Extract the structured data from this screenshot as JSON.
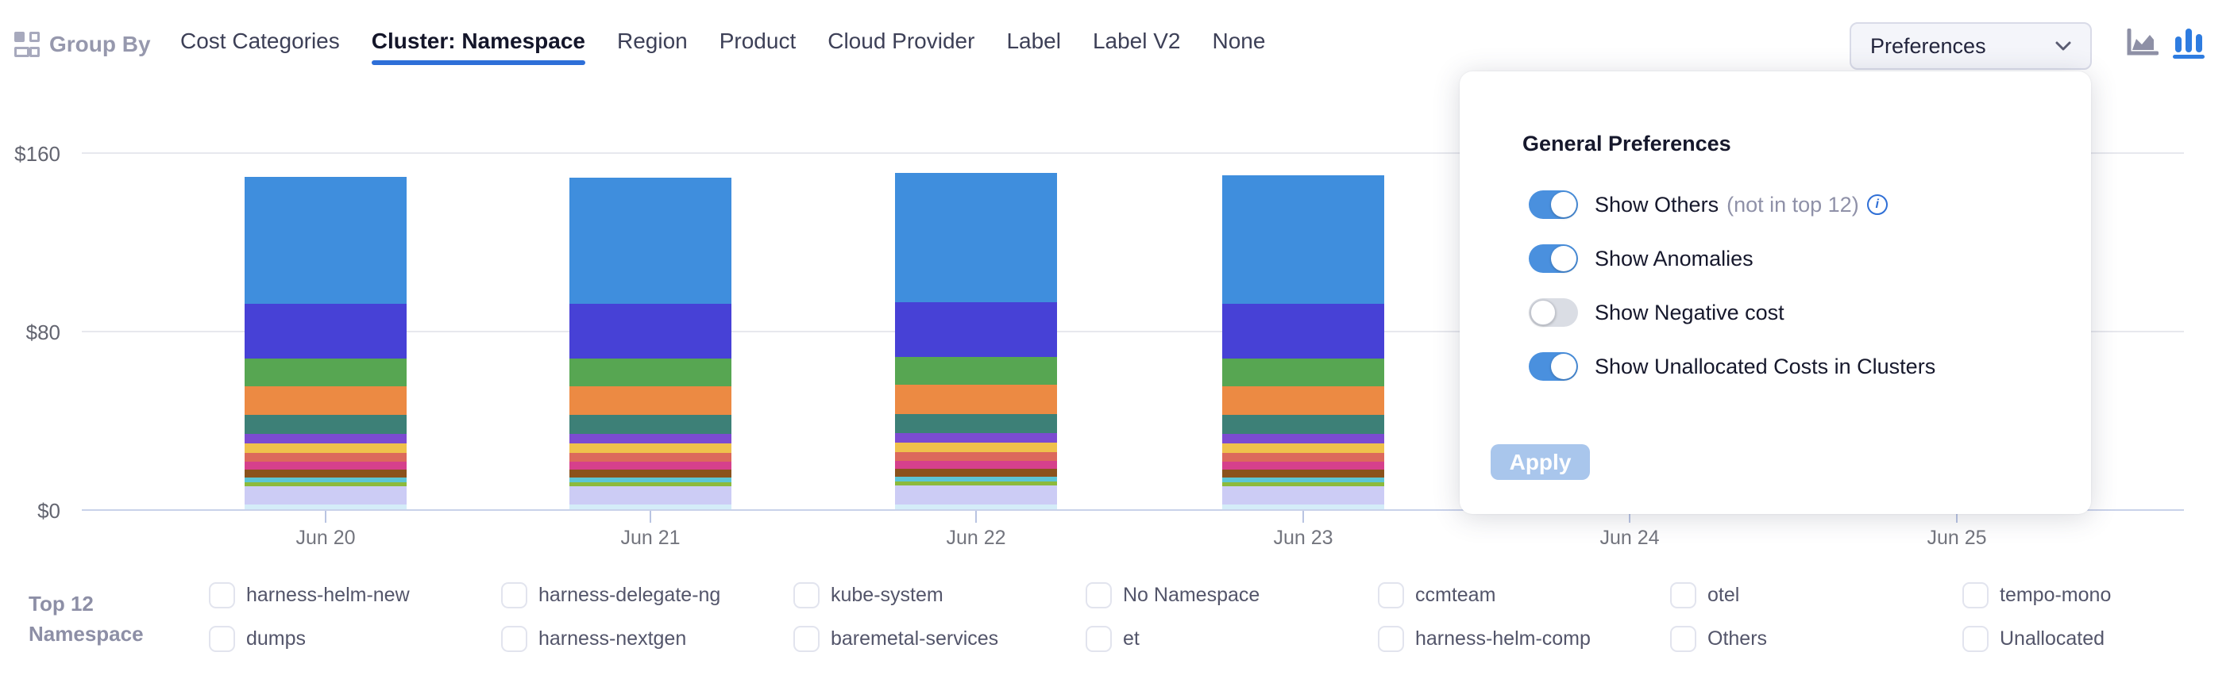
{
  "header": {
    "group_by_label": "Group By",
    "tabs": [
      {
        "label": "Cost Categories",
        "active": false
      },
      {
        "label": "Cluster: Namespace",
        "active": true
      },
      {
        "label": "Region",
        "active": false
      },
      {
        "label": "Product",
        "active": false
      },
      {
        "label": "Cloud Provider",
        "active": false
      },
      {
        "label": "Label",
        "active": false
      },
      {
        "label": "Label V2",
        "active": false
      },
      {
        "label": "None",
        "active": false
      }
    ],
    "preferences_button": {
      "label": "Preferences"
    },
    "chart_type_icons": [
      {
        "name": "area-chart-icon",
        "active": false
      },
      {
        "name": "bar-chart-icon",
        "active": true
      }
    ]
  },
  "preferences_panel": {
    "title": "General Preferences",
    "toggles": [
      {
        "label": "Show Others",
        "suffix": "(not in top 12)",
        "has_info_icon": true,
        "state": "on"
      },
      {
        "label": "Show Anomalies",
        "suffix": "",
        "has_info_icon": false,
        "state": "on"
      },
      {
        "label": "Show Negative cost",
        "suffix": "",
        "has_info_icon": false,
        "state": "off"
      },
      {
        "label": "Show Unallocated Costs in Clusters",
        "suffix": "",
        "has_info_icon": false,
        "state": "on"
      }
    ],
    "apply_label": "Apply"
  },
  "legend": {
    "title_line1": "Top 12",
    "title_line2": "Namespace"
  },
  "chart_data": {
    "type": "bar",
    "stacked": true,
    "title": "",
    "xlabel": "",
    "ylabel": "",
    "unit": "$",
    "ylim": [
      0,
      160
    ],
    "ytick_labels": [
      "$0",
      "$80",
      "$160"
    ],
    "grid": true,
    "legend_position": "bottom",
    "categories": [
      "Jun 20",
      "Jun 21",
      "Jun 22",
      "Jun 23",
      "Jun 24",
      "Jun 25"
    ],
    "bars_rendered": [
      "Jun 20",
      "Jun 21",
      "Jun 22",
      "Jun 23"
    ],
    "note": "Bars for Jun 24 and Jun 25 are covered by the open Preferences panel",
    "series": [
      {
        "name": "harness-helm-new",
        "color": "#3f8edd",
        "values": [
          57,
          56.5,
          58,
          57.5
        ]
      },
      {
        "name": "harness-delegate-ng",
        "color": "#4741d6",
        "values": [
          24.5,
          24.5,
          24.5,
          24.5
        ]
      },
      {
        "name": "kube-system",
        "color": "#57a652",
        "values": [
          12.4,
          12.4,
          12.4,
          12.4
        ]
      },
      {
        "name": "No Namespace",
        "color": "#ec8a43",
        "values": [
          12.8,
          12.8,
          13,
          12.8
        ]
      },
      {
        "name": "ccmteam",
        "color": "#3d8077",
        "values": [
          8.5,
          8.7,
          8.7,
          8.5
        ]
      },
      {
        "name": "otel",
        "color": "#7c4bd1",
        "values": [
          4.3,
          4.3,
          4.3,
          4.3
        ]
      },
      {
        "name": "tempo-mono",
        "color": "#efc14c",
        "values": [
          4.3,
          4.3,
          4.3,
          4.3
        ]
      },
      {
        "name": "dumps",
        "color": "#dc695c",
        "values": [
          3.9,
          3.9,
          3.9,
          3.9
        ]
      },
      {
        "name": "harness-nextgen",
        "color": "#d6408c",
        "values": [
          3.6,
          3.6,
          3.6,
          3.6
        ]
      },
      {
        "name": "baremetal-services",
        "color": "#8b521c",
        "values": [
          3.6,
          3.6,
          3.6,
          3.6
        ]
      },
      {
        "name": "et",
        "color": "#5cc5d5",
        "values": [
          2.1,
          2.1,
          2.1,
          2.1
        ]
      },
      {
        "name": "harness-helm-comp",
        "color": "#8cba3c",
        "values": [
          1.8,
          1.8,
          1.8,
          1.8
        ]
      },
      {
        "name": "Others",
        "color": "#ccccf5",
        "values": [
          8.2,
          8,
          8.5,
          8.3
        ]
      },
      {
        "name": "Unallocated",
        "color": "#d4ecf8",
        "values": [
          2.1,
          2.1,
          2.1,
          2.1
        ]
      }
    ]
  }
}
